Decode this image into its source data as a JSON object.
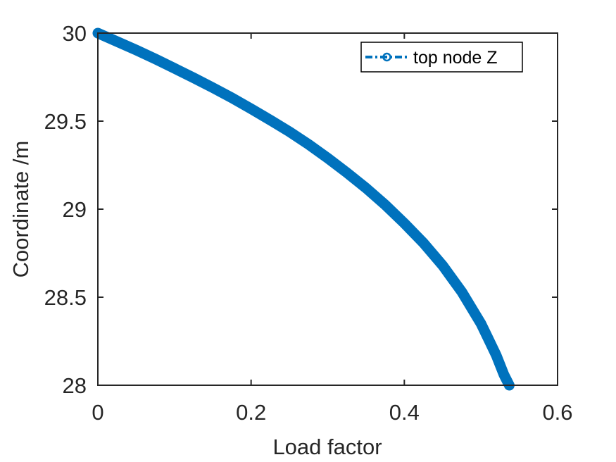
{
  "chart_data": {
    "type": "line",
    "xlabel": "Load factor",
    "ylabel": "Coordinate /m",
    "xlim": [
      0,
      0.6
    ],
    "ylim": [
      28,
      30
    ],
    "xticks": [
      0,
      0.2,
      0.4,
      0.6
    ],
    "xtick_labels": [
      "0",
      "0.2",
      "0.4",
      "0.6"
    ],
    "yticks": [
      28,
      28.5,
      29,
      29.5,
      30
    ],
    "ytick_labels": [
      "28",
      "28.5",
      "29",
      "29.5",
      "30"
    ],
    "grid": false,
    "legend_position": "top-right",
    "series": [
      {
        "name": "top node Z",
        "color": "#0072BD",
        "marker": "o",
        "linestyle": "-.",
        "x": [
          0,
          0.025,
          0.05,
          0.075,
          0.1,
          0.125,
          0.15,
          0.175,
          0.2,
          0.225,
          0.25,
          0.275,
          0.3,
          0.325,
          0.35,
          0.375,
          0.4,
          0.425,
          0.45,
          0.475,
          0.5,
          0.51,
          0.52,
          0.53,
          0.537
        ],
        "y": [
          30,
          29.952,
          29.904,
          29.853,
          29.8,
          29.746,
          29.69,
          29.632,
          29.57,
          29.506,
          29.44,
          29.368,
          29.29,
          29.207,
          29.12,
          29.025,
          28.92,
          28.808,
          28.68,
          28.53,
          28.35,
          28.26,
          28.17,
          28.06,
          28.0
        ]
      }
    ]
  }
}
